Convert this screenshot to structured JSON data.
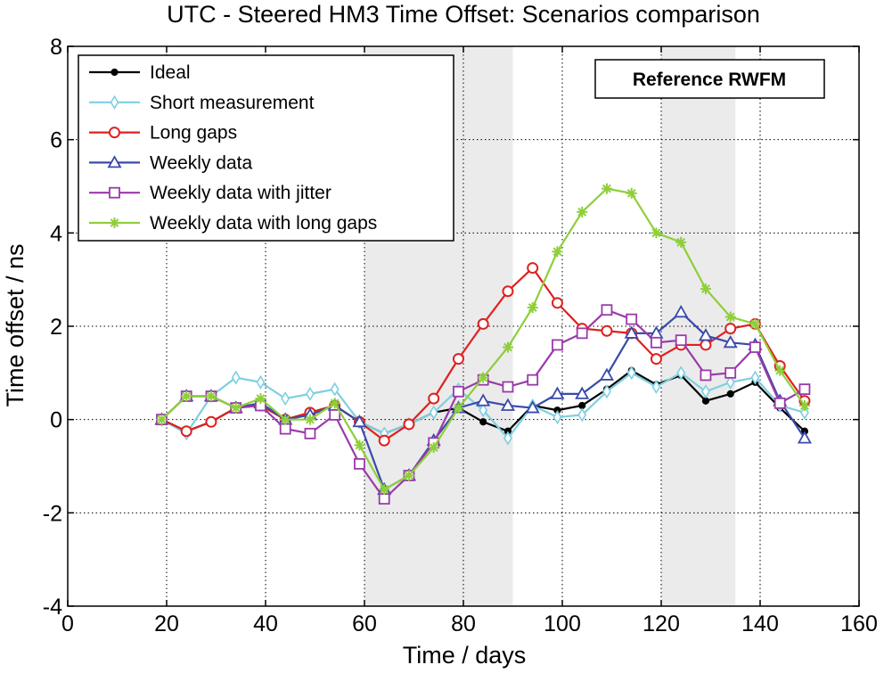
{
  "chart_data": {
    "type": "line",
    "title": "UTC - Steered HM3  Time Offset:  Scenarios comparison",
    "xlabel": "Time / days",
    "ylabel": "Time offset / ns",
    "xlim": [
      0,
      160
    ],
    "ylim": [
      -4,
      8
    ],
    "xticks": [
      0,
      20,
      40,
      60,
      80,
      100,
      120,
      140,
      160
    ],
    "yticks": [
      -4,
      -2,
      0,
      2,
      4,
      6,
      8
    ],
    "grid": true,
    "legend_position": "top-left",
    "annotation": "Reference RWFM",
    "shaded_regions": [
      [
        60,
        90
      ],
      [
        120,
        135
      ]
    ],
    "x": [
      19,
      24,
      29,
      34,
      39,
      44,
      49,
      54,
      59,
      64,
      69,
      74,
      79,
      84,
      89,
      94,
      99,
      104,
      109,
      114,
      119,
      124,
      129,
      134,
      139,
      144,
      149
    ],
    "series": [
      {
        "name": "Ideal",
        "color": "#000000",
        "marker": "dot",
        "values": [
          0,
          -0.25,
          -0.05,
          0.25,
          0.35,
          0.0,
          0.15,
          0.3,
          -0.05,
          -0.3,
          -0.1,
          0.15,
          0.25,
          -0.05,
          -0.25,
          0.3,
          0.2,
          0.3,
          0.65,
          1.05,
          0.75,
          0.95,
          0.4,
          0.55,
          0.8,
          0.25,
          -0.25
        ]
      },
      {
        "name": "Short measurement",
        "color": "#7fcfe0",
        "marker": "diamond",
        "values": [
          0,
          -0.3,
          0.5,
          0.9,
          0.8,
          0.45,
          0.55,
          0.65,
          -0.05,
          -0.3,
          -0.1,
          0.15,
          0.65,
          0.2,
          -0.4,
          0.3,
          0.05,
          0.1,
          0.6,
          1.0,
          0.7,
          1.0,
          0.6,
          0.8,
          0.9,
          0.3,
          0.15
        ]
      },
      {
        "name": "Long gaps",
        "color": "#e02020",
        "marker": "circle",
        "values": [
          0,
          -0.25,
          -0.05,
          0.25,
          0.3,
          0.0,
          0.15,
          0.3,
          -0.05,
          -0.45,
          -0.1,
          0.45,
          1.3,
          2.05,
          2.75,
          3.25,
          2.5,
          1.95,
          1.9,
          1.85,
          1.3,
          1.6,
          1.6,
          1.95,
          2.05,
          1.15,
          0.4
        ]
      },
      {
        "name": "Weekly data",
        "color": "#3a4aaa",
        "marker": "triangle",
        "values": [
          0,
          0.5,
          0.5,
          0.25,
          0.35,
          0.0,
          0.1,
          0.3,
          -0.05,
          -1.5,
          -1.2,
          -0.45,
          0.25,
          0.4,
          0.3,
          0.25,
          0.55,
          0.55,
          0.95,
          1.85,
          1.85,
          2.3,
          1.8,
          1.65,
          1.6,
          0.4,
          -0.4
        ]
      },
      {
        "name": "Weekly data with jitter",
        "color": "#9a3aaa",
        "marker": "square",
        "values": [
          0,
          0.5,
          0.5,
          0.25,
          0.3,
          -0.2,
          -0.3,
          0.1,
          -0.95,
          -1.7,
          -1.2,
          -0.5,
          0.6,
          0.85,
          0.7,
          0.85,
          1.6,
          1.85,
          2.35,
          2.15,
          1.65,
          1.7,
          0.95,
          1.0,
          1.55,
          0.35,
          0.65
        ]
      },
      {
        "name": "Weekly data with long gaps",
        "color": "#8ecf3a",
        "marker": "star",
        "values": [
          0,
          0.5,
          0.5,
          0.25,
          0.45,
          0.0,
          0.0,
          0.35,
          -0.55,
          -1.5,
          -1.2,
          -0.6,
          0.25,
          0.9,
          1.55,
          2.4,
          3.6,
          4.45,
          4.95,
          4.85,
          4.0,
          3.8,
          2.8,
          2.2,
          2.05,
          1.05,
          0.3
        ]
      }
    ]
  }
}
